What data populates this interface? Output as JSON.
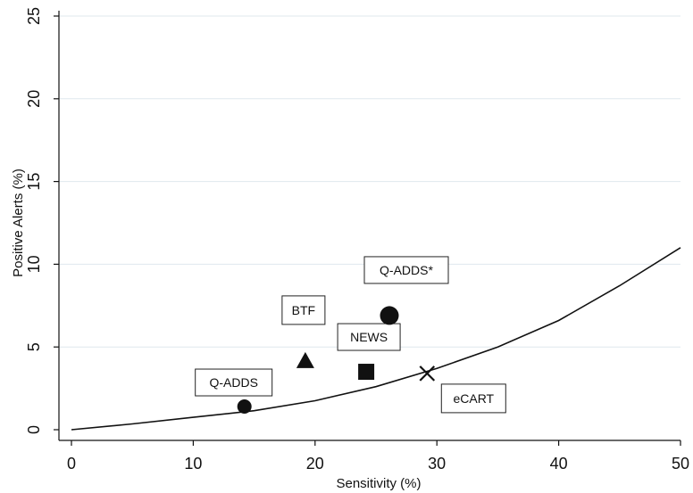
{
  "chart_data": {
    "type": "scatter",
    "xlabel": "Sensitivity (%)",
    "ylabel": "Positive Alerts (%)",
    "xlim": [
      0,
      50
    ],
    "ylim": [
      0,
      25
    ],
    "x_ticks": [
      0,
      10,
      20,
      30,
      40,
      50
    ],
    "y_ticks": [
      0,
      5,
      10,
      15,
      20,
      25
    ],
    "grid": "horizontal",
    "curve": {
      "x": [
        0,
        5,
        10,
        15,
        20,
        25,
        30,
        35,
        40,
        45,
        50
      ],
      "y": [
        0,
        0.35,
        0.75,
        1.15,
        1.75,
        2.6,
        3.7,
        5.0,
        6.6,
        8.7,
        11.0
      ]
    },
    "points": [
      {
        "label": "Q-ADDS",
        "x": 14.2,
        "y": 1.4,
        "marker": "circle-small"
      },
      {
        "label": "BTF",
        "x": 19.2,
        "y": 4.1,
        "marker": "triangle"
      },
      {
        "label": "NEWS",
        "x": 24.2,
        "y": 3.5,
        "marker": "square"
      },
      {
        "label": "Q-ADDS*",
        "x": 26.1,
        "y": 6.9,
        "marker": "circle-large"
      },
      {
        "label": "eCART",
        "x": 29.2,
        "y": 3.4,
        "marker": "x"
      }
    ]
  }
}
